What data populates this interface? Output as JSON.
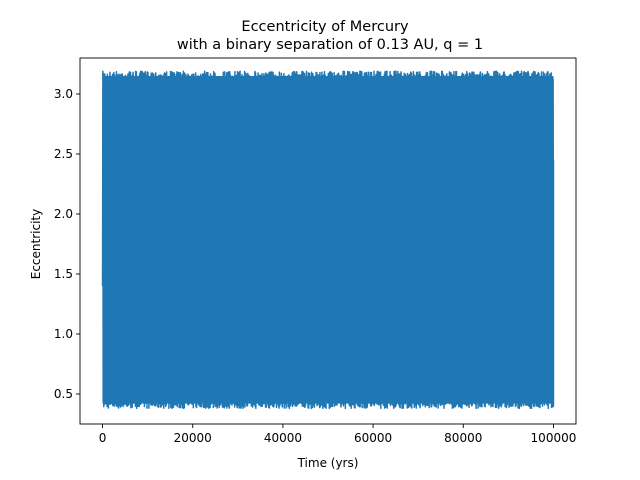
{
  "chart_data": {
    "type": "line",
    "title": "Eccentricity of Mercury",
    "subtitle": "with a binary separation of 0.13 AU, q = 1",
    "xlabel": "Time (yrs)",
    "ylabel": "Eccentricity",
    "xlim": [
      -5000,
      105000
    ],
    "ylim": [
      0.25,
      3.3
    ],
    "xticks": [
      0,
      20000,
      40000,
      60000,
      80000,
      100000
    ],
    "xtick_labels": [
      "0",
      "20000",
      "40000",
      "60000",
      "80000",
      "100000"
    ],
    "yticks": [
      0.5,
      1.0,
      1.5,
      2.0,
      2.5,
      3.0
    ],
    "ytick_labels": [
      "0.5",
      "1.0",
      "1.5",
      "2.0",
      "2.5",
      "3.0"
    ],
    "grid": false,
    "series": [
      {
        "color": "#1f77b4",
        "x_range": [
          0,
          100000
        ],
        "y_min_envelope": 0.38,
        "y_max_envelope": 3.19,
        "description_values": {
          "x": [
            0,
            500,
            5000,
            20000,
            40000,
            60000,
            80000,
            99500,
            100000
          ],
          "y": [
            1.4,
            3.15,
            0.4,
            3.18,
            0.39,
            3.17,
            0.41,
            3.16,
            2.45
          ]
        }
      }
    ]
  }
}
